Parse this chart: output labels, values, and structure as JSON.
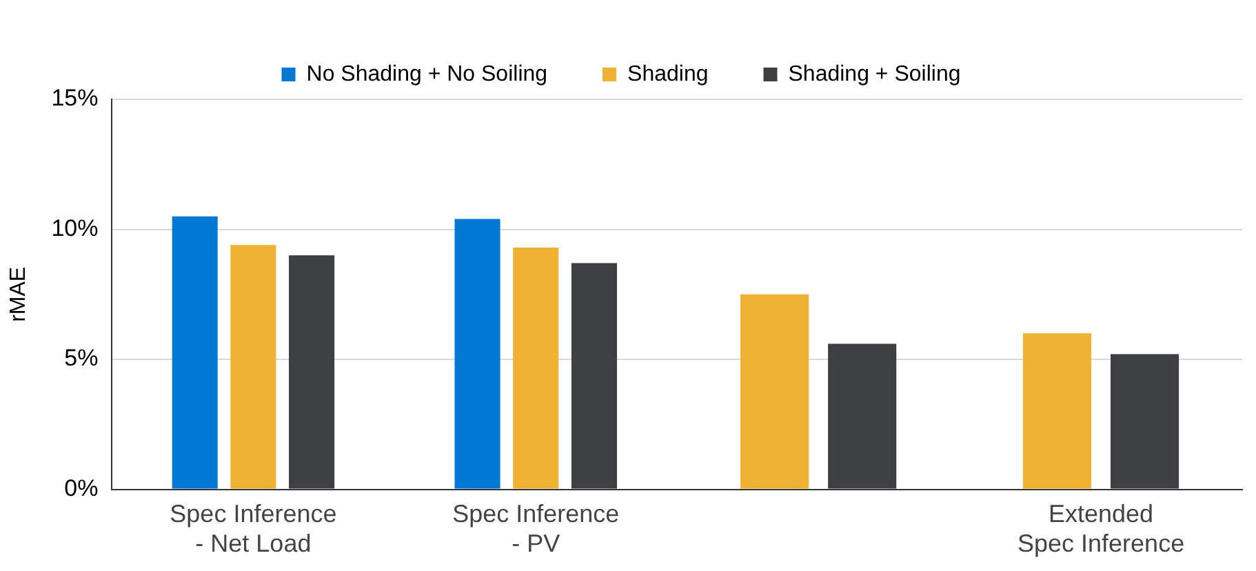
{
  "chart_data": {
    "type": "bar",
    "ylabel": "rMAE",
    "categories": [
      "Spec Inference\n- Net Load",
      "Spec Inference\n- PV",
      null,
      "Extended\nSpec Inference"
    ],
    "series": [
      {
        "name": "No Shading + No Soiling",
        "color": "#0078d4",
        "values": [
          10.5,
          10.4,
          null,
          null
        ]
      },
      {
        "name": "Shading",
        "color": "#f0b232",
        "values": [
          9.4,
          9.3,
          7.5,
          6.0
        ]
      },
      {
        "name": "Shading + Soiling",
        "color": "#3d4040",
        "values": [
          9.0,
          8.7,
          5.6,
          5.2
        ]
      }
    ],
    "ylim": [
      0,
      15
    ],
    "yticks": [
      {
        "value": 0,
        "label": "0%"
      },
      {
        "value": 5,
        "label": "5%"
      },
      {
        "value": 10,
        "label": "10%"
      },
      {
        "value": 15,
        "label": "15%"
      }
    ],
    "grid": "y",
    "legend": "top"
  }
}
